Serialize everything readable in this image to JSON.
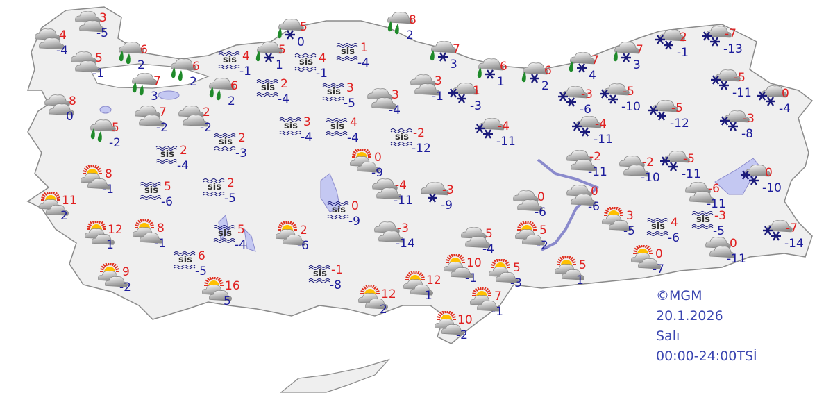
{
  "legend": {
    "copyright": "©MGM",
    "date": "20.1.2026",
    "day": "Salı",
    "period": "00:00-24:00TSİ"
  },
  "fog_label": "sis",
  "colors": {
    "max_temp": "#e02020",
    "min_temp": "#1c1c9c",
    "land": "#efefef",
    "border": "#8a8a8a",
    "lake": "#c4c8f2",
    "rain_drop": "#1f8a2a",
    "snowflake": "#1a1a7a"
  },
  "icon_types": {
    "c": "cloudy-icon",
    "ps": "partly-sunny-icon",
    "r": "rain-icon",
    "rs": "sleet-icon",
    "s": "snow-icon",
    "s1": "light-snow-icon",
    "fog": "fog-icon"
  },
  "stations": [
    {
      "type": "c",
      "max": "4",
      "min": "-4"
    },
    {
      "type": "c",
      "max": "3",
      "min": "-5"
    },
    {
      "type": "c",
      "max": "5",
      "min": "-1"
    },
    {
      "type": "r",
      "max": "6",
      "min": "2"
    },
    {
      "type": "c",
      "max": "8",
      "min": "0"
    },
    {
      "type": "r",
      "max": "7",
      "min": "3"
    },
    {
      "type": "r",
      "max": "6",
      "min": "2"
    },
    {
      "type": "r",
      "max": "5",
      "min": "-2"
    },
    {
      "type": "c",
      "max": "7",
      "min": "-2"
    },
    {
      "type": "c",
      "max": "2",
      "min": "-2"
    },
    {
      "type": "r",
      "max": "6",
      "min": "2"
    },
    {
      "type": "fog",
      "max": "4",
      "min": "-1"
    },
    {
      "type": "rs",
      "max": "5",
      "min": "1"
    },
    {
      "type": "rs",
      "max": "5",
      "min": "0"
    },
    {
      "type": "fog",
      "max": "4",
      "min": "-1"
    },
    {
      "type": "fog",
      "max": "1",
      "min": "-4"
    },
    {
      "type": "fog",
      "max": "2",
      "min": "-4"
    },
    {
      "type": "fog",
      "max": "3",
      "min": "-5"
    },
    {
      "type": "fog",
      "max": "3",
      "min": "-4"
    },
    {
      "type": "fog",
      "max": "4",
      "min": "-4"
    },
    {
      "type": "fog",
      "max": "2",
      "min": "-3"
    },
    {
      "type": "fog",
      "max": "2",
      "min": "-4"
    },
    {
      "type": "ps",
      "max": "8",
      "min": "-1"
    },
    {
      "type": "fog",
      "max": "5",
      "min": "-6"
    },
    {
      "type": "fog",
      "max": "2",
      "min": "-5"
    },
    {
      "type": "ps",
      "max": "11",
      "min": "2"
    },
    {
      "type": "ps",
      "max": "12",
      "min": "1"
    },
    {
      "type": "ps",
      "max": "8",
      "min": "-1"
    },
    {
      "type": "fog",
      "max": "5",
      "min": "-4"
    },
    {
      "type": "fog",
      "max": "6",
      "min": "-5"
    },
    {
      "type": "ps",
      "max": "9",
      "min": "-2"
    },
    {
      "type": "ps",
      "max": "16",
      "min": "5"
    },
    {
      "type": "ps",
      "max": "2",
      "min": "-6"
    },
    {
      "type": "fog",
      "max": "-1",
      "min": "-8"
    },
    {
      "type": "fog",
      "max": "0",
      "min": "-9"
    },
    {
      "type": "ps",
      "max": "0",
      "min": "-9"
    },
    {
      "type": "c",
      "max": "-4",
      "min": "-11"
    },
    {
      "type": "s1",
      "max": "-3",
      "min": "-9"
    },
    {
      "type": "c",
      "max": "-3",
      "min": "-14"
    },
    {
      "type": "c",
      "max": "3",
      "min": "-4"
    },
    {
      "type": "r",
      "max": "8",
      "min": "2"
    },
    {
      "type": "fog",
      "max": "-2",
      "min": "-12"
    },
    {
      "type": "c",
      "max": "3",
      "min": "-1"
    },
    {
      "type": "rs",
      "max": "7",
      "min": "3"
    },
    {
      "type": "s",
      "max": "1",
      "min": "-3"
    },
    {
      "type": "s",
      "max": "-4",
      "min": "-11"
    },
    {
      "type": "rs",
      "max": "6",
      "min": "1"
    },
    {
      "type": "rs",
      "max": "6",
      "min": "2"
    },
    {
      "type": "rs",
      "max": "7",
      "min": "4"
    },
    {
      "type": "rs",
      "max": "7",
      "min": "3"
    },
    {
      "type": "s",
      "max": "2",
      "min": "-1"
    },
    {
      "type": "s",
      "max": "-7",
      "min": "-13"
    },
    {
      "type": "s",
      "max": "-3",
      "min": "-6"
    },
    {
      "type": "s",
      "max": "-5",
      "min": "-10"
    },
    {
      "type": "s",
      "max": "-4",
      "min": "-11"
    },
    {
      "type": "s",
      "max": "-5",
      "min": "-12"
    },
    {
      "type": "s",
      "max": "-5",
      "min": "-11"
    },
    {
      "type": "s",
      "max": "0",
      "min": "-4"
    },
    {
      "type": "s",
      "max": "-3",
      "min": "-8"
    },
    {
      "type": "c",
      "max": "-2",
      "min": "-11"
    },
    {
      "type": "c",
      "max": "-2",
      "min": "-10"
    },
    {
      "type": "s",
      "max": "-5",
      "min": "-11"
    },
    {
      "type": "s",
      "max": "0",
      "min": "-10"
    },
    {
      "type": "c",
      "max": "-6",
      "min": "-11"
    },
    {
      "type": "c",
      "max": "0",
      "min": "-6"
    },
    {
      "type": "c",
      "max": "0",
      "min": "-6"
    },
    {
      "type": "ps",
      "max": "3",
      "min": "-5"
    },
    {
      "type": "fog",
      "max": "4",
      "min": "-6"
    },
    {
      "type": "fog",
      "max": "-3",
      "min": "-5"
    },
    {
      "type": "s",
      "max": "-7",
      "min": "-14"
    },
    {
      "type": "c",
      "max": "0",
      "min": "-11"
    },
    {
      "type": "ps",
      "max": "0",
      "min": "-7"
    },
    {
      "type": "ps",
      "max": "5",
      "min": "1"
    },
    {
      "type": "ps",
      "max": "5",
      "min": "-3"
    },
    {
      "type": "ps",
      "max": "5",
      "min": "-2"
    },
    {
      "type": "c",
      "max": "5",
      "min": "-4"
    },
    {
      "type": "ps",
      "max": "10",
      "min": "-1"
    },
    {
      "type": "ps",
      "max": "12",
      "min": "1"
    },
    {
      "type": "ps",
      "max": "12",
      "min": "2"
    },
    {
      "type": "ps",
      "max": "7",
      "min": "-1"
    },
    {
      "type": "ps",
      "max": "10",
      "min": "-2"
    }
  ]
}
